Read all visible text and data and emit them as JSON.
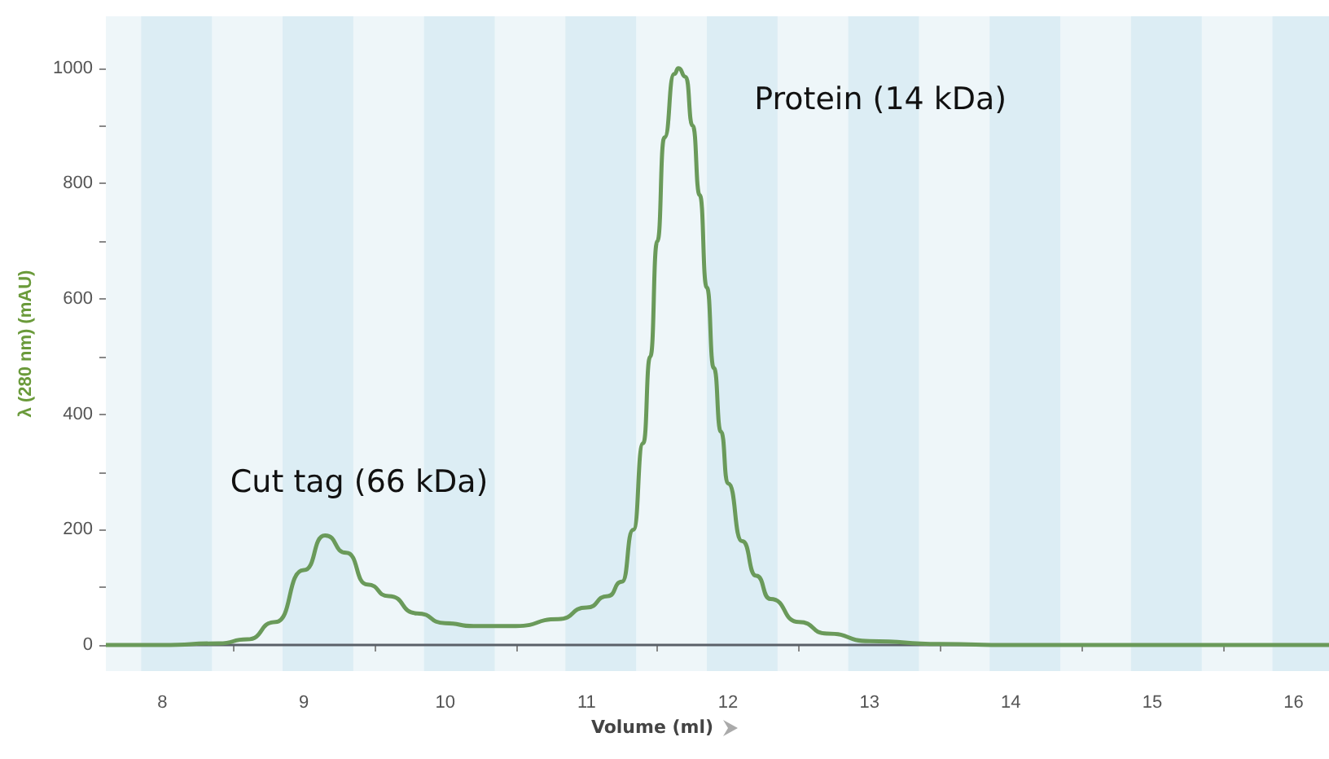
{
  "chart_data": {
    "type": "line",
    "xlabel": "Volume (ml)",
    "ylabel": "λ (280 nm) (mAU)",
    "x": [
      7.6,
      8.0,
      8.4,
      8.6,
      8.8,
      9.0,
      9.15,
      9.3,
      9.45,
      9.6,
      9.8,
      10.0,
      10.2,
      10.5,
      10.8,
      11.0,
      11.15,
      11.25,
      11.33,
      11.4,
      11.45,
      11.5,
      11.55,
      11.62,
      11.65,
      11.7,
      11.75,
      11.8,
      11.85,
      11.9,
      11.95,
      12.0,
      12.1,
      12.2,
      12.3,
      12.5,
      12.7,
      13.0,
      13.5,
      14.0,
      15.0,
      16.25
    ],
    "series": [
      {
        "color": "#6a9a5a",
        "values": [
          0,
          0,
          3,
          10,
          40,
          130,
          190,
          160,
          105,
          85,
          55,
          38,
          33,
          33,
          45,
          65,
          85,
          110,
          200,
          350,
          500,
          700,
          880,
          990,
          1000,
          985,
          900,
          780,
          620,
          480,
          370,
          280,
          180,
          120,
          80,
          40,
          20,
          7,
          2,
          0,
          0,
          0
        ]
      }
    ],
    "xlim": [
      7.6,
      16.25
    ],
    "xticks": [
      8,
      {
        "value": 8.5,
        "label": null
      },
      9,
      {
        "value": 9.5,
        "label": null
      },
      10,
      {
        "value": 10.5,
        "label": null
      },
      11,
      {
        "value": 11.5,
        "label": null
      },
      12,
      {
        "value": 12.5,
        "label": null
      },
      13,
      {
        "value": 13.5,
        "label": null
      },
      14,
      {
        "value": 14.5,
        "label": null
      },
      15,
      {
        "value": 15.5,
        "label": null
      },
      16
    ],
    "ylim": [
      -45,
      1090
    ],
    "yticks": [
      0,
      {
        "value": 100,
        "label": null
      },
      200,
      {
        "value": 300,
        "label": null
      },
      400,
      {
        "value": 500,
        "label": null
      },
      600,
      {
        "value": 700,
        "label": null
      },
      800,
      {
        "value": 900,
        "label": null
      },
      1000
    ],
    "grid": false,
    "marker": "none",
    "line_style": "solid",
    "ref_lines": [
      {
        "axis": "y",
        "value": 0,
        "color": "#5a6068"
      }
    ],
    "bands": [
      {
        "axis": "x",
        "from": 7.85,
        "to": 8.35,
        "color": "#dcedf4"
      },
      {
        "axis": "x",
        "from": 8.85,
        "to": 9.35,
        "color": "#dcedf4"
      },
      {
        "axis": "x",
        "from": 9.85,
        "to": 10.35,
        "color": "#dcedf4"
      },
      {
        "axis": "x",
        "from": 10.85,
        "to": 11.35,
        "color": "#dcedf4"
      },
      {
        "axis": "x",
        "from": 11.85,
        "to": 12.35,
        "color": "#dcedf4"
      },
      {
        "axis": "x",
        "from": 12.85,
        "to": 13.35,
        "color": "#dcedf4"
      },
      {
        "axis": "x",
        "from": 13.85,
        "to": 14.35,
        "color": "#dcedf4"
      },
      {
        "axis": "x",
        "from": 14.85,
        "to": 15.35,
        "color": "#dcedf4"
      },
      {
        "axis": "x",
        "from": 15.85,
        "to": 16.25,
        "color": "#dcedf4"
      }
    ],
    "annotations": [
      {
        "text": "Cut tag (66 kDa)",
        "x": 9.15,
        "y": 190
      },
      {
        "text": "Protein (14 kDa)",
        "x": 11.65,
        "y": 1000
      }
    ]
  }
}
